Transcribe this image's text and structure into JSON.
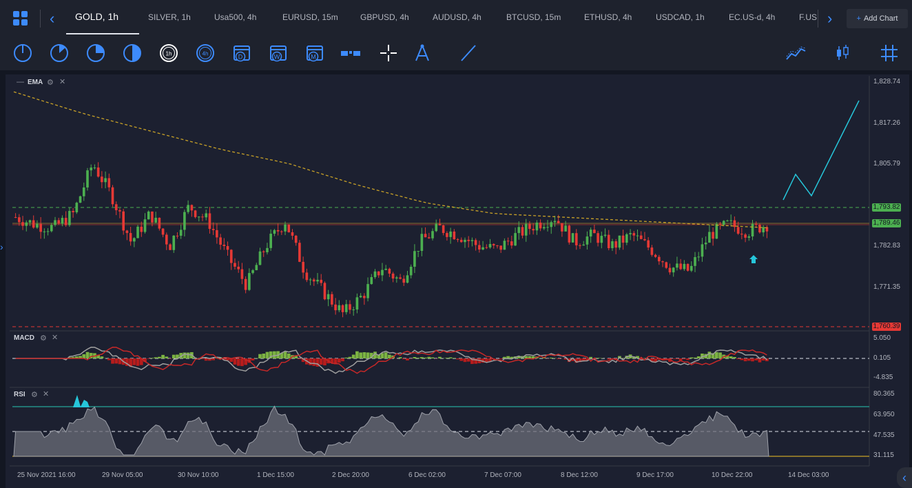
{
  "header": {
    "tabs": [
      {
        "label": "GOLD, 1h",
        "active": true
      },
      {
        "label": "SILVER, 1h"
      },
      {
        "label": "Usa500, 4h"
      },
      {
        "label": "EURUSD, 15m"
      },
      {
        "label": "GBPUSD, 4h"
      },
      {
        "label": "AUDUSD, 4h"
      },
      {
        "label": "BTCUSD, 15m"
      },
      {
        "label": "ETHUSD, 4h"
      },
      {
        "label": "USDCAD, 1h"
      },
      {
        "label": "EC.US-d, 4h"
      },
      {
        "label": "F.US"
      }
    ],
    "add_chart": "Add Chart"
  },
  "toolbar": {
    "timeframes": [
      "1m",
      "5m",
      "15m",
      "30m",
      "1h",
      "4h",
      "D",
      "W",
      "M"
    ],
    "tools": [
      "layout-icon",
      "crosshair-icon",
      "measure-icon",
      "trendline-icon",
      "indicators-icon",
      "chart-type-icon",
      "grid-icon"
    ]
  },
  "panes": {
    "main": {
      "indicator": "EMA"
    },
    "macd": {
      "label": "MACD"
    },
    "rsi": {
      "label": "RSI"
    }
  },
  "price_axis": {
    "labels": [
      "1,828.74",
      "1,817.26",
      "1,805.79",
      "1,782.83",
      "1,771.35"
    ],
    "tag_green": "1,793.82",
    "tag_current": "1,789.46",
    "tag_red": "1,760.39"
  },
  "macd_axis": [
    "5.050",
    "0.105",
    "-4.835"
  ],
  "rsi_axis": [
    "80.365",
    "63.950",
    "47.535",
    "31.115"
  ],
  "time_axis": [
    "25 Nov 2021 16:00",
    "29 Nov 05:00",
    "30 Nov 10:00",
    "1 Dec 15:00",
    "2 Dec 20:00",
    "6 Dec 02:00",
    "7 Dec 07:00",
    "8 Dec 12:00",
    "9 Dec 17:00",
    "10 Dec 22:00",
    "14 Dec 03:00"
  ],
  "colors": {
    "up": "#4caf50",
    "down": "#e53935",
    "accent": "#3d8bfd",
    "ema": "#c9a227",
    "projection": "#26c6da"
  },
  "chart_data": {
    "type": "candlestick",
    "series": [
      {
        "name": "GOLD, 1h",
        "approx_close_path": [
          1791,
          1789,
          1788,
          1792,
          1806,
          1797,
          1784,
          1792,
          1783,
          1794,
          1790,
          1780,
          1772,
          1783,
          1790,
          1776,
          1770,
          1764,
          1769,
          1777,
          1773,
          1784,
          1788,
          1786,
          1783,
          1782,
          1786,
          1789,
          1791,
          1784,
          1786,
          1783,
          1786,
          1782,
          1777,
          1776,
          1786,
          1789,
          1787,
          1789
        ]
      },
      {
        "name": "EMA",
        "approx_values": [
          1826,
          1820,
          1815,
          1810,
          1806,
          1800,
          1795,
          1792,
          1791,
          1790,
          1789,
          1788
        ]
      }
    ],
    "ylim": [
      1760.39,
      1828.74
    ],
    "horizontal_levels": [
      1793.82,
      1789.46,
      1760.39
    ]
  }
}
